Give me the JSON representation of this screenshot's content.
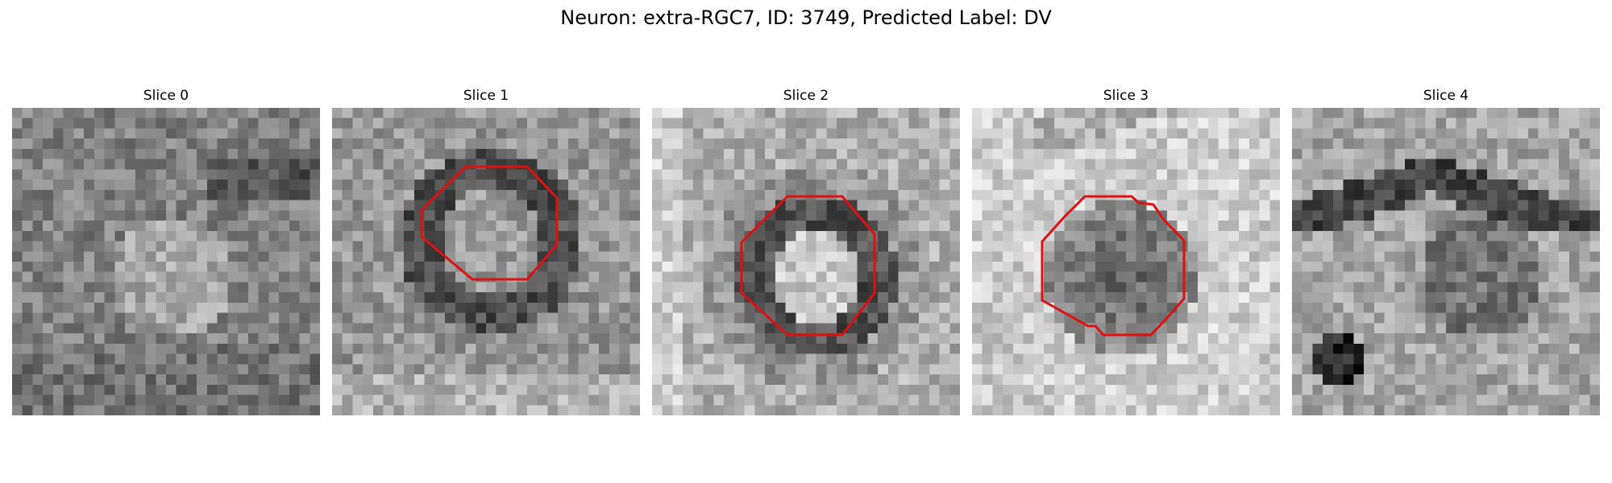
{
  "figure": {
    "title": "Neuron: extra-RGC7, ID: 3749, Predicted Label: DV"
  },
  "panels": [
    {
      "title": "Slice 0",
      "has_outline": false
    },
    {
      "title": "Slice 1",
      "has_outline": true
    },
    {
      "title": "Slice 2",
      "has_outline": true
    },
    {
      "title": "Slice 3",
      "has_outline": true
    },
    {
      "title": "Slice 4",
      "has_outline": false
    }
  ],
  "colors": {
    "outline": "#e01010",
    "background": "#ffffff"
  },
  "colormap": "gray"
}
